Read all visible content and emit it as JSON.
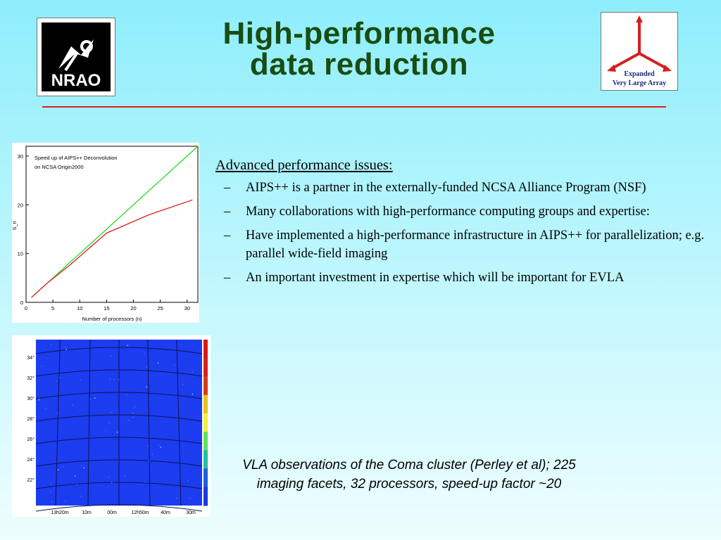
{
  "title": {
    "line1": "High-performance",
    "line2": "data reduction"
  },
  "logos": {
    "nrao_text": "NRAO",
    "evla_lines": [
      "Expanded",
      "Very Large Array"
    ]
  },
  "colors": {
    "title": "#1a4d12",
    "rule": "#e21b1b",
    "ideal_line": "#22dd22",
    "measured_line": "#dd2020",
    "sky_background": "#1c3cf0"
  },
  "bullets": {
    "heading": "Advanced performance issues:",
    "items": [
      "AIPS++ is a partner in the externally-funded NCSA Alliance Program (NSF)",
      "Many collaborations with high-performance computing groups and expertise:",
      "Have implemented a high-performance infrastructure in AIPS++ for parallelization; e.g. parallel wide-field imaging",
      "An important investment in expertise which will be important for EVLA"
    ]
  },
  "caption": "VLA observations of the Coma cluster (Perley et al); 225 imaging facets, 32 processors, speed-up factor ~20",
  "chart_data": {
    "type": "line",
    "title": "Speed up of AIPS++ Deconvolution",
    "subtitle": "on NCSA Origin2000",
    "xlabel": "Number of processors (n)",
    "ylabel": "S_n",
    "xlim": [
      0,
      32
    ],
    "ylim": [
      0,
      32
    ],
    "xticks": [
      0,
      5,
      10,
      15,
      20,
      25,
      30
    ],
    "yticks": [
      0,
      10,
      20,
      30
    ],
    "series": [
      {
        "color": "#22dd22",
        "x": [
          1,
          32
        ],
        "y": [
          1,
          32
        ]
      },
      {
        "color": "#dd2020",
        "x": [
          1,
          4,
          8,
          15,
          23,
          31
        ],
        "y": [
          1,
          4,
          7.5,
          14.2,
          18,
          21
        ]
      }
    ]
  },
  "sky_map": {
    "dec_labels": [
      "34°",
      "32°",
      "30°",
      "28°",
      "26°",
      "24°",
      "22°"
    ],
    "ra_labels": [
      "13h20m",
      "10m",
      "00m",
      "12h50m",
      "40m",
      "30m"
    ]
  }
}
